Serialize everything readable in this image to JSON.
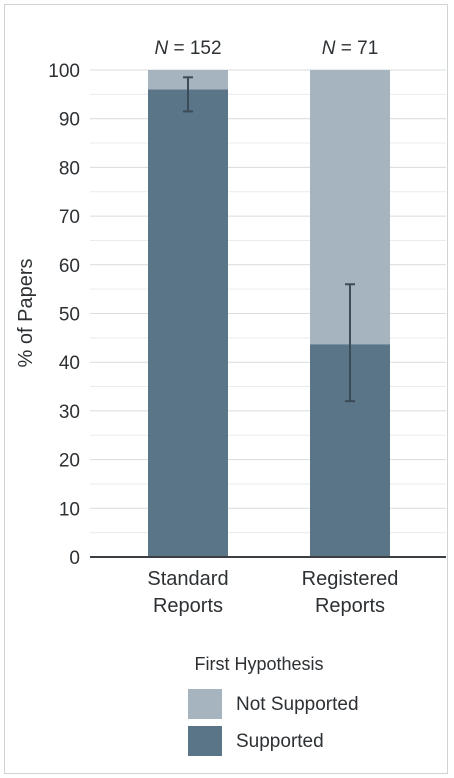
{
  "chart_data": {
    "type": "bar",
    "stacked": true,
    "categories": [
      "Standard Reports",
      "Registered Reports"
    ],
    "category_lines": [
      [
        "Standard",
        "Reports"
      ],
      [
        "Registered",
        "Reports"
      ]
    ],
    "n_labels": [
      "N = 152",
      "N = 71"
    ],
    "series": [
      {
        "name": "Supported",
        "values": [
          96,
          43.7
        ],
        "color": "#5a7587"
      },
      {
        "name": "Not Supported",
        "values": [
          4,
          56.3
        ],
        "color": "#a6b4bf"
      }
    ],
    "error_bars": [
      {
        "category": "Standard Reports",
        "low": 91.5,
        "high": 98.5
      },
      {
        "category": "Registered Reports",
        "low": 32,
        "high": 56
      }
    ],
    "ylabel": "% of Papers",
    "xlabel": "",
    "ylim": [
      0,
      100
    ],
    "yticks": [
      0,
      10,
      20,
      30,
      40,
      50,
      60,
      70,
      80,
      90,
      100
    ],
    "grid": true,
    "legend": {
      "title": "First Hypothesis",
      "placement": "bottom",
      "entries": [
        {
          "label": "Not Supported",
          "color": "#a6b4bf"
        },
        {
          "label": "Supported",
          "color": "#5a7587"
        }
      ]
    }
  }
}
